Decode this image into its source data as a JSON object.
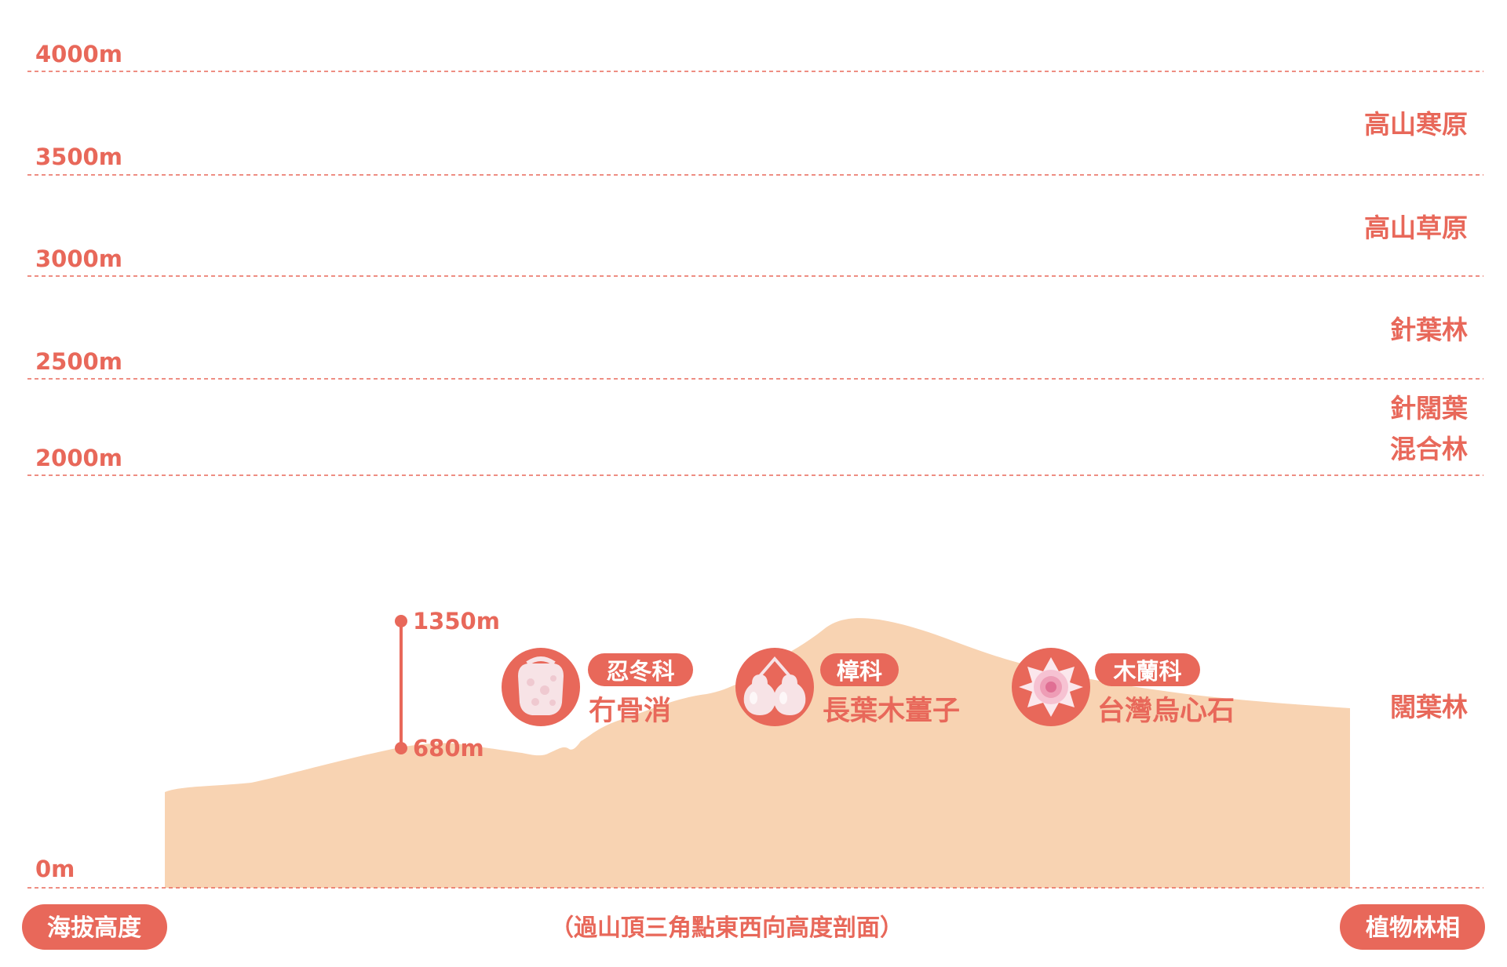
{
  "colors": {
    "accent": "#E8685A",
    "terrain": "#F8D3B2",
    "background": "#FFFFFF",
    "pill_text": "#FFFFFF"
  },
  "elevation_axis": {
    "ticks": [
      "4000m",
      "3500m",
      "3000m",
      "2500m",
      "2000m",
      "0m"
    ]
  },
  "vegetation_zones": {
    "alpine_tundra": "高山寒原",
    "alpine_grassland": "高山草原",
    "coniferous_forest": "針葉林",
    "mixed_forest_line1": "針闊葉",
    "mixed_forest_line2": "混合林",
    "broadleaf_forest": "闊葉林"
  },
  "range_marker": {
    "top_label": "1350m",
    "bottom_label": "680m"
  },
  "plants": [
    {
      "family": "忍冬科",
      "species": "冇骨消",
      "icon": "berry-icon"
    },
    {
      "family": "樟科",
      "species": "長葉木薑子",
      "icon": "fruit-pair-icon"
    },
    {
      "family": "木蘭科",
      "species": "台灣烏心石",
      "icon": "flower-icon"
    }
  ],
  "footer": {
    "left_pill": "海拔高度",
    "caption": "（過山頂三角點東西向高度剖面）",
    "right_pill": "植物林相"
  }
}
